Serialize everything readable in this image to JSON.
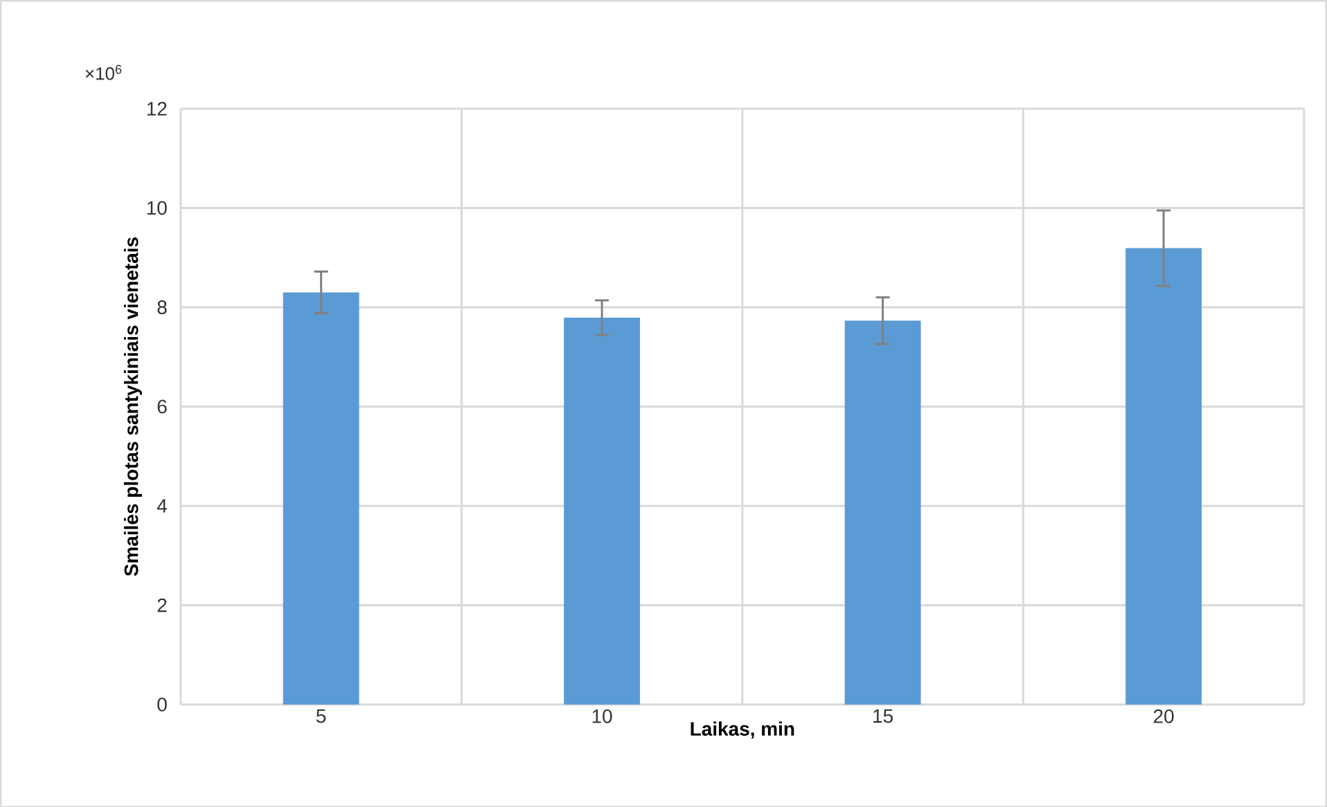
{
  "chart_data": {
    "type": "bar",
    "categories": [
      "5",
      "10",
      "15",
      "20"
    ],
    "values": [
      8.3,
      7.79,
      7.73,
      9.19
    ],
    "errors": [
      0.42,
      0.35,
      0.47,
      0.76
    ],
    "color": "#5b9bd5",
    "xlabel": "Laikas, min",
    "ylabel": "Smailės plotas santykiniais vienetais",
    "annotations": [
      "×10$^{6}$"
    ],
    "ylim": [
      0,
      12
    ],
    "yticks": [
      0,
      2,
      4,
      6,
      8,
      10,
      12
    ],
    "grid": true
  }
}
